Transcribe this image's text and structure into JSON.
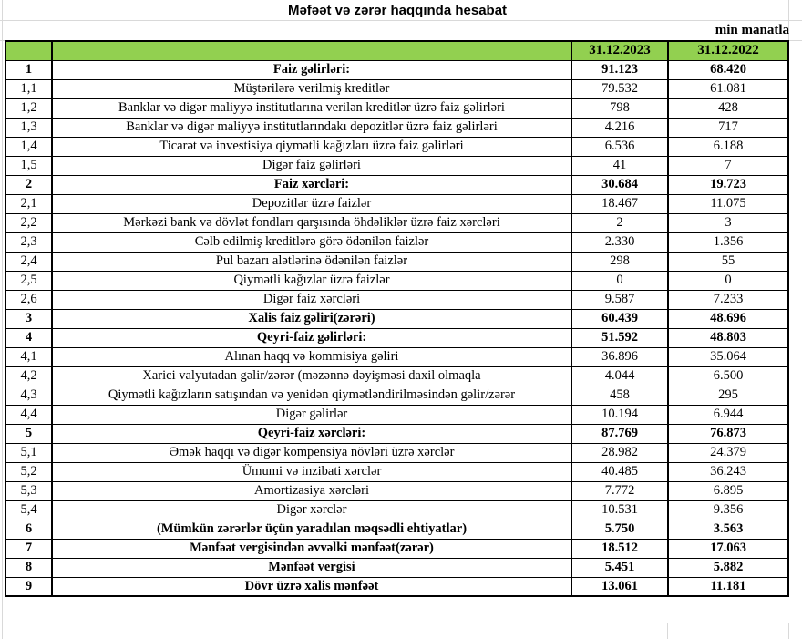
{
  "title": "Məfəət və zərər haqqında hesabat",
  "unit_note": "min manatla",
  "header": {
    "col_2023": "31.12.2023",
    "col_2022": "31.12.2022"
  },
  "colors": {
    "header_green": "#92D050",
    "table_border": "#000000",
    "gridline": "#D9D9D9"
  },
  "rows": [
    {
      "no": "1",
      "label": "Faiz gəlirləri:",
      "v2023": "91.123",
      "v2022": "68.420",
      "bold": true
    },
    {
      "no": "1,1",
      "label": "Müştərilərə verilmiş kreditlər",
      "v2023": "79.532",
      "v2022": "61.081",
      "bold": false
    },
    {
      "no": "1,2",
      "label": "Banklar və digər maliyyə institutlarına verilən kreditlər üzrə faiz gəlirləri",
      "v2023": "798",
      "v2022": "428",
      "bold": false
    },
    {
      "no": "1,3",
      "label": "Banklar və digər maliyyə institutlarındakı depozitlər üzrə faiz gəlirləri",
      "v2023": "4.216",
      "v2022": "717",
      "bold": false
    },
    {
      "no": "1,4",
      "label": "Ticarət və investisiya qiymətli kağızları üzrə faiz gəlirləri",
      "v2023": "6.536",
      "v2022": "6.188",
      "bold": false
    },
    {
      "no": "1,5",
      "label": "Digər faiz gəlirləri",
      "v2023": "41",
      "v2022": "7",
      "bold": false
    },
    {
      "no": "2",
      "label": "Faiz xərcləri:",
      "v2023": "30.684",
      "v2022": "19.723",
      "bold": true
    },
    {
      "no": "2,1",
      "label": "Depozitlər üzrə faizlər",
      "v2023": "18.467",
      "v2022": "11.075",
      "bold": false
    },
    {
      "no": "2,2",
      "label": "Mərkəzi bank və dövlət fondları qarşısında öhdəliklər üzrə faiz xərcləri",
      "v2023": "2",
      "v2022": "3",
      "bold": false
    },
    {
      "no": "2,3",
      "label": "Cəlb edilmiş kreditlərə görə ödənilən faizlər",
      "v2023": "2.330",
      "v2022": "1.356",
      "bold": false
    },
    {
      "no": "2,4",
      "label": "Pul bazarı alətlərinə ödənilən faizlər",
      "v2023": "298",
      "v2022": "55",
      "bold": false
    },
    {
      "no": "2,5",
      "label": "Qiymətli kağızlar üzrə faizlər",
      "v2023": "0",
      "v2022": "0",
      "bold": false
    },
    {
      "no": "2,6",
      "label": "Digər faiz xərcləri",
      "v2023": "9.587",
      "v2022": "7.233",
      "bold": false
    },
    {
      "no": "3",
      "label": "Xalis faiz gəliri(zərəri)",
      "v2023": "60.439",
      "v2022": "48.696",
      "bold": true
    },
    {
      "no": "4",
      "label": "Qeyri-faiz gəlirləri:",
      "v2023": "51.592",
      "v2022": "48.803",
      "bold": true
    },
    {
      "no": "4,1",
      "label": "Alınan haqq və kommisiya gəliri",
      "v2023": "36.896",
      "v2022": "35.064",
      "bold": false
    },
    {
      "no": "4,2",
      "label": "Xarici valyutadan gəlir/zərər (məzənnə dəyişməsi daxil olmaqla",
      "v2023": "4.044",
      "v2022": "6.500",
      "bold": false
    },
    {
      "no": "4,3",
      "label": "Qiymətli kağızların satışından və yenidən qiymətləndirilməsindən gəlir/zərər",
      "v2023": "458",
      "v2022": "295",
      "bold": false
    },
    {
      "no": "4,4",
      "label": "Digər gəlirlər",
      "v2023": "10.194",
      "v2022": "6.944",
      "bold": false
    },
    {
      "no": "5",
      "label": "Qeyri-faiz xərcləri:",
      "v2023": "87.769",
      "v2022": "76.873",
      "bold": true
    },
    {
      "no": "5,1",
      "label": "Əmək haqqı və digər kompensiya növləri üzrə xərclər",
      "v2023": "28.982",
      "v2022": "24.379",
      "bold": false
    },
    {
      "no": "5,2",
      "label": "Ümumi və inzibati xərclər",
      "v2023": "40.485",
      "v2022": "36.243",
      "bold": false
    },
    {
      "no": "5,3",
      "label": "Amortizasiya xərcləri",
      "v2023": "7.772",
      "v2022": "6.895",
      "bold": false
    },
    {
      "no": "5,4",
      "label": "Digər xərclər",
      "v2023": "10.531",
      "v2022": "9.356",
      "bold": false
    },
    {
      "no": "6",
      "label": "(Mümkün zərərlər üçün yaradılan məqsədli ehtiyatlar)",
      "v2023": "5.750",
      "v2022": "3.563",
      "bold": true
    },
    {
      "no": "7",
      "label": "Mənfəət vergisindən əvvəlki mənfəət(zərər)",
      "v2023": "18.512",
      "v2022": "17.063",
      "bold": true
    },
    {
      "no": "8",
      "label": "Mənfəət vergisi",
      "v2023": "5.451",
      "v2022": "5.882",
      "bold": true
    },
    {
      "no": "9",
      "label": "Dövr üzrə xalis mənfəət",
      "v2023": "13.061",
      "v2022": "11.181",
      "bold": true
    }
  ]
}
